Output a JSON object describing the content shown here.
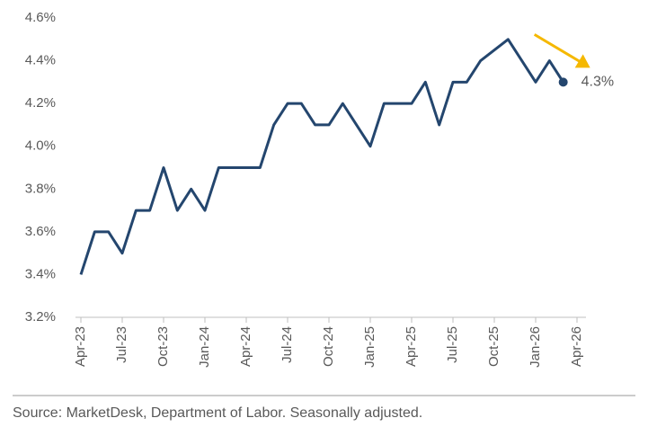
{
  "chart_data": {
    "type": "line",
    "x": [
      "2023-04",
      "2023-05",
      "2023-06",
      "2023-07",
      "2023-08",
      "2023-09",
      "2023-10",
      "2023-11",
      "2023-12",
      "2024-01",
      "2024-02",
      "2024-03",
      "2024-04",
      "2024-05",
      "2024-06",
      "2024-07",
      "2024-08",
      "2024-09",
      "2024-10",
      "2024-11",
      "2024-12",
      "2025-01",
      "2025-02",
      "2025-03",
      "2025-04",
      "2025-05",
      "2025-06",
      "2025-07",
      "2025-08",
      "2025-09",
      "2025-11",
      "2025-12",
      "2026-01",
      "2026-02",
      "2026-03"
    ],
    "series": [
      {
        "color": "#24466e",
        "values": [
          3.4,
          3.6,
          3.6,
          3.5,
          3.7,
          3.7,
          3.9,
          3.7,
          3.8,
          3.7,
          3.9,
          3.9,
          3.9,
          3.9,
          4.1,
          4.2,
          4.2,
          4.1,
          4.1,
          4.2,
          4.1,
          4.0,
          4.2,
          4.2,
          4.2,
          4.3,
          4.1,
          4.3,
          4.3,
          4.4,
          4.5,
          4.4,
          4.3,
          4.4,
          4.3
        ]
      }
    ],
    "xlim": [
      "2023-04",
      "2026-04"
    ],
    "xticks": [
      {
        "value": "2023-04",
        "label": "Apr-23"
      },
      {
        "value": "2023-07",
        "label": "Jul-23"
      },
      {
        "value": "2023-10",
        "label": "Oct-23"
      },
      {
        "value": "2024-01",
        "label": "Jan-24"
      },
      {
        "value": "2024-04",
        "label": "Apr-24"
      },
      {
        "value": "2024-07",
        "label": "Jul-24"
      },
      {
        "value": "2024-10",
        "label": "Oct-24"
      },
      {
        "value": "2025-01",
        "label": "Jan-25"
      },
      {
        "value": "2025-04",
        "label": "Apr-25"
      },
      {
        "value": "2025-07",
        "label": "Jul-25"
      },
      {
        "value": "2025-10",
        "label": "Oct-25"
      },
      {
        "value": "2026-01",
        "label": "Jan-26"
      },
      {
        "value": "2026-04",
        "label": "Apr-26"
      }
    ],
    "ylim": [
      3.2,
      4.6
    ],
    "yticks": [
      {
        "value": 3.2,
        "label": "3.2%"
      },
      {
        "value": 3.4,
        "label": "3.4%"
      },
      {
        "value": 3.6,
        "label": "3.6%"
      },
      {
        "value": 3.8,
        "label": "3.8%"
      },
      {
        "value": 4.0,
        "label": "4.0%"
      },
      {
        "value": 4.2,
        "label": "4.2%"
      },
      {
        "value": 4.4,
        "label": "4.4%"
      },
      {
        "value": 4.6,
        "label": "4.6%"
      }
    ],
    "annotations": [
      {
        "text": "4.3%",
        "x": "2026-03",
        "y": 4.3,
        "arrow_color": "#f5b800"
      }
    ],
    "source": "Source: MarketDesk, Department of Labor. Seasonally adjusted."
  }
}
